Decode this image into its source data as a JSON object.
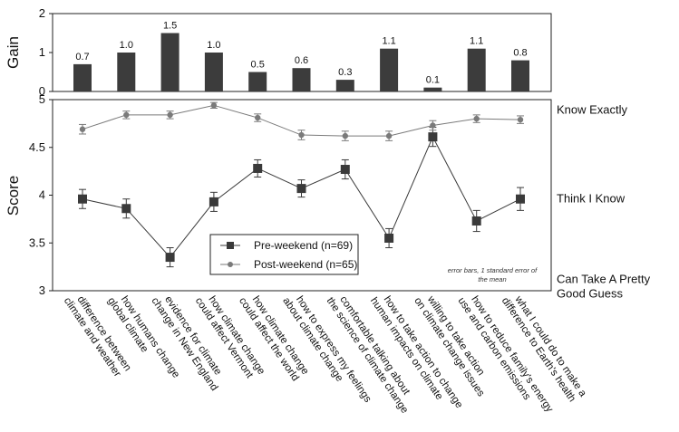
{
  "chart_data": [
    {
      "type": "bar",
      "ylabel": "Gain",
      "ylim": [
        0,
        2
      ],
      "yticks": [
        "0",
        "1",
        "2"
      ],
      "categories": [
        "difference between climate and weather",
        "how humans change global climate",
        "evidence for climate change in New England",
        "how climate change could affect Vermont",
        "how climate change could affect the world",
        "how to express my feelings about climate change",
        "comfortable talking about the science of climate change",
        "how to take action to change human impacts on climate",
        "willing to take action on climate change issues",
        "how to reduce family's energy use and carbon emissions",
        "what I could do to make a difference to Earth's health"
      ],
      "values": [
        0.7,
        1.0,
        1.5,
        1.0,
        0.5,
        0.6,
        0.3,
        1.1,
        0.1,
        1.1,
        0.8
      ],
      "value_labels": [
        "0.7",
        "1.0",
        "1.5",
        "1.0",
        "0.5",
        "0.6",
        "0.3",
        "1.1",
        "0.1",
        "1.1",
        "0.8"
      ],
      "bar_color": "#3c3c3c"
    },
    {
      "type": "line",
      "ylabel": "Score",
      "ylim": [
        3,
        5
      ],
      "yticks": [
        "3",
        "3.5",
        "4",
        "4.5",
        "5"
      ],
      "right_labels": [
        {
          "y": 4.9,
          "lines": [
            "Know Exactly"
          ]
        },
        {
          "y": 3.97,
          "lines": [
            "Think I Know"
          ]
        },
        {
          "y": 3.13,
          "lines": [
            "Can Take A Pretty",
            "Good Guess"
          ]
        }
      ],
      "series": [
        {
          "name": "Pre-weekend (n=69)",
          "values": [
            3.96,
            3.86,
            3.35,
            3.93,
            4.28,
            4.07,
            4.27,
            3.55,
            4.61,
            3.73,
            3.96
          ],
          "errors": [
            0.1,
            0.1,
            0.1,
            0.1,
            0.09,
            0.09,
            0.1,
            0.1,
            0.1,
            0.11,
            0.12
          ],
          "color": "#3a3a3a",
          "marker": "square"
        },
        {
          "name": "Post-weekend (n=65)",
          "values": [
            4.69,
            4.84,
            4.84,
            4.94,
            4.81,
            4.63,
            4.62,
            4.62,
            4.73,
            4.8,
            4.79
          ],
          "errors": [
            0.05,
            0.04,
            0.04,
            0.03,
            0.04,
            0.05,
            0.05,
            0.05,
            0.05,
            0.04,
            0.04
          ],
          "color": "#7a7a7a",
          "marker": "circle"
        }
      ],
      "note_lines": [
        "error bars, 1 standard error of",
        "the mean"
      ]
    }
  ]
}
